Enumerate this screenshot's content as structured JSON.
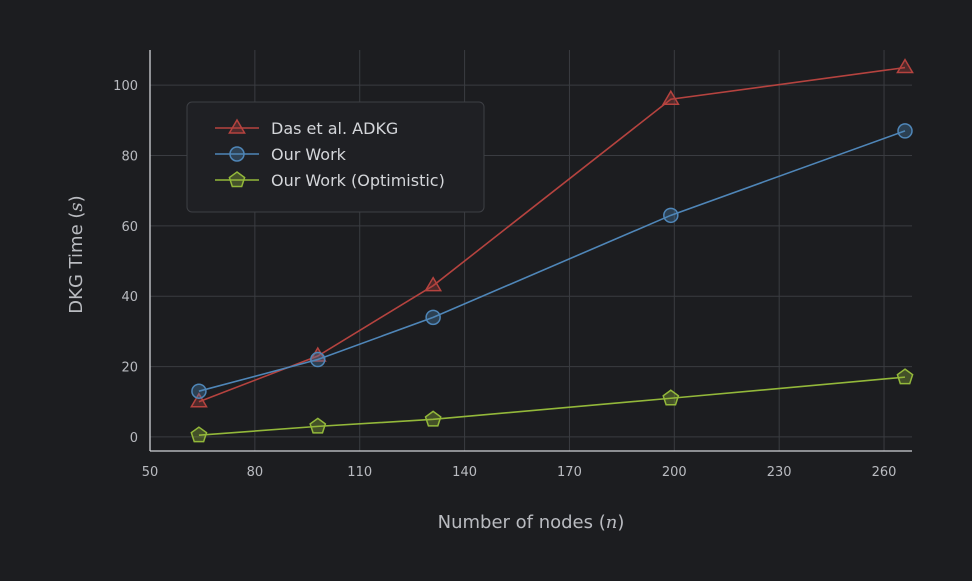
{
  "chart_data": {
    "type": "line",
    "xlabel": "Number of nodes",
    "xlabel_var": "n",
    "ylabel": "DKG Time",
    "ylabel_unit": "s",
    "xlim": [
      50,
      268
    ],
    "ylim": [
      -4,
      110
    ],
    "xticks": [
      50,
      80,
      110,
      140,
      170,
      200,
      230,
      260
    ],
    "yticks": [
      0,
      20,
      40,
      60,
      80,
      100
    ],
    "grid": true,
    "legend_position": "upper-left",
    "series": [
      {
        "name": "Das et al. ADKG",
        "marker": "triangle",
        "color": "#b5433f",
        "x": [
          64,
          98,
          131,
          199,
          266
        ],
        "y": [
          10,
          23,
          43,
          96,
          105
        ]
      },
      {
        "name": "Our Work",
        "marker": "circle",
        "color": "#4f86b8",
        "x": [
          64,
          98,
          131,
          199,
          266
        ],
        "y": [
          13,
          22,
          34,
          63,
          87
        ]
      },
      {
        "name": "Our Work (Optimistic)",
        "marker": "pentagon",
        "color": "#93b83a",
        "x": [
          64,
          98,
          131,
          199,
          266
        ],
        "y": [
          0.5,
          3,
          5,
          11,
          17
        ]
      }
    ]
  }
}
